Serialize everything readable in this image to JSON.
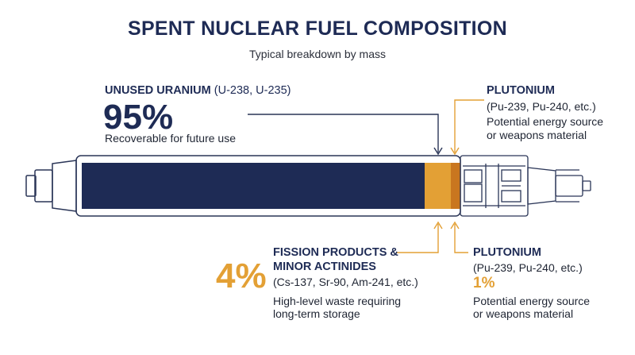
{
  "title": "SPENT NUCLEAR FUEL COMPOSITION",
  "subtitle": "Typical breakdown by mass",
  "uranium": {
    "heading": "UNUSED URANIUM",
    "isotopes": "(U-238, U-235)",
    "percent": "95%",
    "note": "Recoverable for future use"
  },
  "plutonium_top": {
    "heading": "PLUTONIUM",
    "isotopes": "(Pu-239, Pu-240, etc.)",
    "note_line1": "Potential energy source",
    "note_line2": "or weapons material"
  },
  "fission": {
    "heading_line1": "FISSION PRODUCTS &",
    "heading_line2": "MINOR ACTINIDES",
    "isotopes": "(Cs-137, Sr-90, Am-241, etc.)",
    "percent": "4%",
    "note_line1": "High-level waste requiring",
    "note_line2": "long-term storage"
  },
  "plutonium_bottom": {
    "heading": "PLUTONIUM",
    "isotopes": "(Pu-239, Pu-240, etc.)",
    "percent": "1%",
    "note_line1": "Potential energy source",
    "note_line2": "or weapons material"
  },
  "colors": {
    "navy": "#1e2b55",
    "orange": "#e3a035",
    "dark_orange": "#c9761f",
    "outline": "#2a3557"
  }
}
